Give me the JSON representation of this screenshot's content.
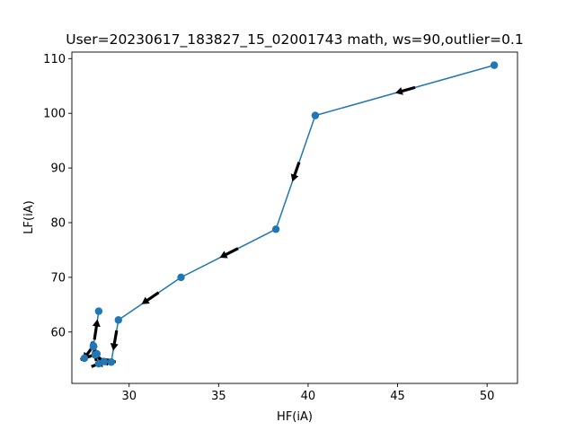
{
  "chart_data": {
    "type": "line",
    "title": "User=20230617_183827_15_02001743 math, ws=90,outlier=0.1",
    "xlabel": "HF(iA)",
    "ylabel": "LF(iA)",
    "xlim": [
      26.8,
      51.7
    ],
    "ylim": [
      50.6,
      111.2
    ],
    "xticks": [
      30,
      35,
      40,
      45,
      50
    ],
    "yticks": [
      60,
      70,
      80,
      90,
      100,
      110
    ],
    "grid": false,
    "colors": {
      "line": "#1f77b4",
      "marker": "#1f77b4",
      "arrow": "#000000"
    },
    "series": [
      {
        "x": [
          50.4,
          40.4,
          38.2,
          32.9,
          29.4,
          29.0,
          28.3,
          28.6,
          28.1,
          28.0,
          27.5,
          28.2,
          28.0,
          28.3
        ],
        "y": [
          108.8,
          99.6,
          78.8,
          70.0,
          62.2,
          54.5,
          54.2,
          54.6,
          55.8,
          57.5,
          55.2,
          56.0,
          57.3,
          63.8
        ]
      }
    ]
  }
}
